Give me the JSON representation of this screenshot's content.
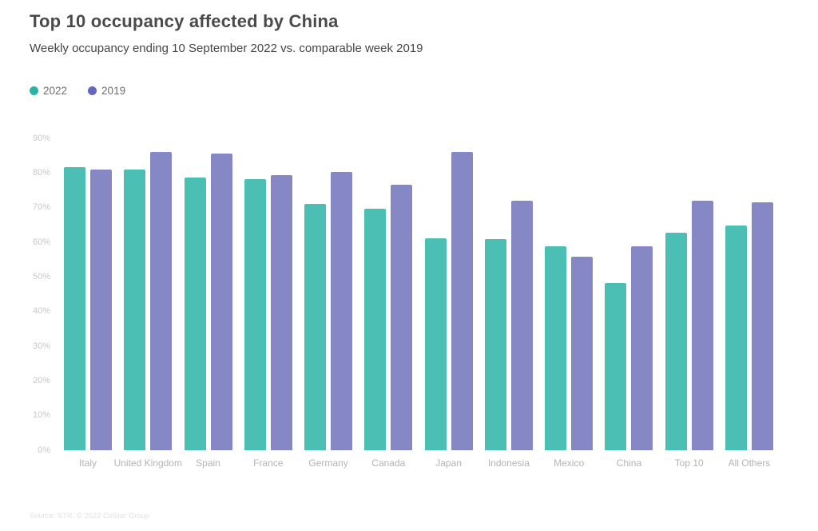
{
  "header": {
    "title": "Top 10 occupancy affected by China",
    "subtitle": "Weekly occupancy ending 10 September 2022 vs. comparable week 2019"
  },
  "legend": [
    {
      "label": "2022",
      "color": "#2bb1a5"
    },
    {
      "label": "2019",
      "color": "#6367bd"
    }
  ],
  "chart_data": {
    "type": "bar",
    "title": "Top 10 occupancy affected by China",
    "subtitle": "Weekly occupancy ending 10 September 2022 vs. comparable week 2019",
    "categories": [
      "Italy",
      "United Kingdom",
      "Spain",
      "France",
      "Germany",
      "Canada",
      "Japan",
      "Indonesia",
      "Mexico",
      "China",
      "Top 10",
      "All Others"
    ],
    "series": [
      {
        "name": "2022",
        "color": "#4cbfb5",
        "values": [
          81.7,
          81.0,
          78.8,
          78.2,
          71.2,
          69.8,
          61.2,
          61.0,
          58.9,
          48.2,
          62.8,
          64.9
        ]
      },
      {
        "name": "2019",
        "color": "#8588c4",
        "values": [
          80.9,
          86.1,
          85.6,
          79.3,
          80.3,
          76.6,
          86.0,
          71.9,
          55.9,
          58.8,
          72.1,
          71.6
        ]
      }
    ],
    "xlabel": "",
    "ylabel": "",
    "ylim": [
      0,
      90
    ],
    "yticks_labels": [
      "0%",
      "10%",
      "20%",
      "30%",
      "40%",
      "50%",
      "60%",
      "70%",
      "80%",
      "90%"
    ],
    "ytick_values": [
      0,
      10,
      20,
      30,
      40,
      50,
      60,
      70,
      80,
      90
    ],
    "grid": false,
    "legend_position": "top-left"
  },
  "footer": {
    "source": "Source: STR. © 2022 CoStar Group"
  }
}
